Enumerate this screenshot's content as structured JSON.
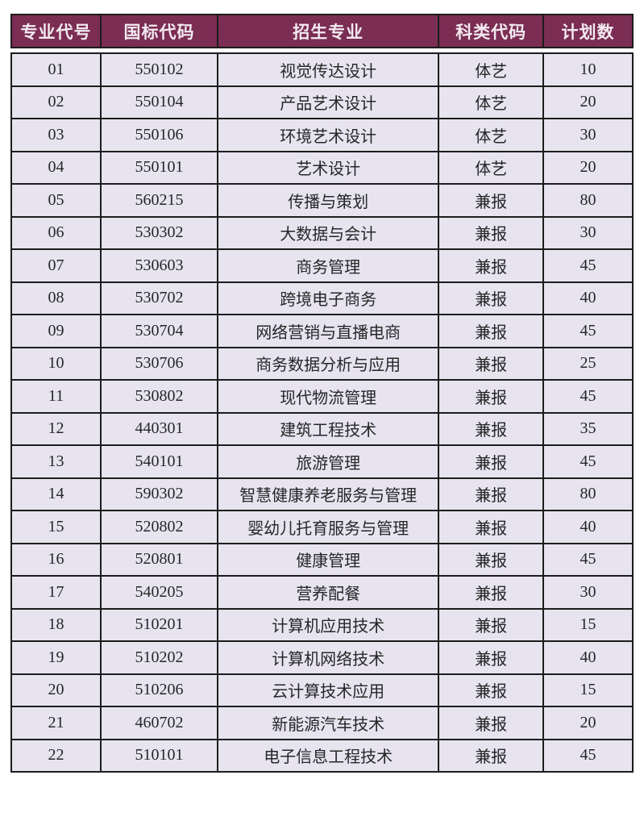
{
  "theme": {
    "header_bg": "#7b2d54",
    "header_text": "#f2eaef",
    "row_bg": "#e7e4f0",
    "row_text": "#262626",
    "border_color": "#1c1c1c",
    "page_bg": "#ffffff"
  },
  "table": {
    "headers": [
      "专业代号",
      "国标代码",
      "招生专业",
      "科类代码",
      "计划数"
    ],
    "rows": [
      [
        "01",
        "550102",
        "视觉传达设计",
        "体艺",
        "10"
      ],
      [
        "02",
        "550104",
        "产品艺术设计",
        "体艺",
        "20"
      ],
      [
        "03",
        "550106",
        "环境艺术设计",
        "体艺",
        "30"
      ],
      [
        "04",
        "550101",
        "艺术设计",
        "体艺",
        "20"
      ],
      [
        "05",
        "560215",
        "传播与策划",
        "兼报",
        "80"
      ],
      [
        "06",
        "530302",
        "大数据与会计",
        "兼报",
        "30"
      ],
      [
        "07",
        "530603",
        "商务管理",
        "兼报",
        "45"
      ],
      [
        "08",
        "530702",
        "跨境电子商务",
        "兼报",
        "40"
      ],
      [
        "09",
        "530704",
        "网络营销与直播电商",
        "兼报",
        "45"
      ],
      [
        "10",
        "530706",
        "商务数据分析与应用",
        "兼报",
        "25"
      ],
      [
        "11",
        "530802",
        "现代物流管理",
        "兼报",
        "45"
      ],
      [
        "12",
        "440301",
        "建筑工程技术",
        "兼报",
        "35"
      ],
      [
        "13",
        "540101",
        "旅游管理",
        "兼报",
        "45"
      ],
      [
        "14",
        "590302",
        "智慧健康养老服务与管理",
        "兼报",
        "80"
      ],
      [
        "15",
        "520802",
        "婴幼儿托育服务与管理",
        "兼报",
        "40"
      ],
      [
        "16",
        "520801",
        "健康管理",
        "兼报",
        "45"
      ],
      [
        "17",
        "540205",
        "营养配餐",
        "兼报",
        "30"
      ],
      [
        "18",
        "510201",
        "计算机应用技术",
        "兼报",
        "15"
      ],
      [
        "19",
        "510202",
        "计算机网络技术",
        "兼报",
        "40"
      ],
      [
        "20",
        "510206",
        "云计算技术应用",
        "兼报",
        "15"
      ],
      [
        "21",
        "460702",
        "新能源汽车技术",
        "兼报",
        "20"
      ],
      [
        "22",
        "510101",
        "电子信息工程技术",
        "兼报",
        "45"
      ]
    ]
  }
}
